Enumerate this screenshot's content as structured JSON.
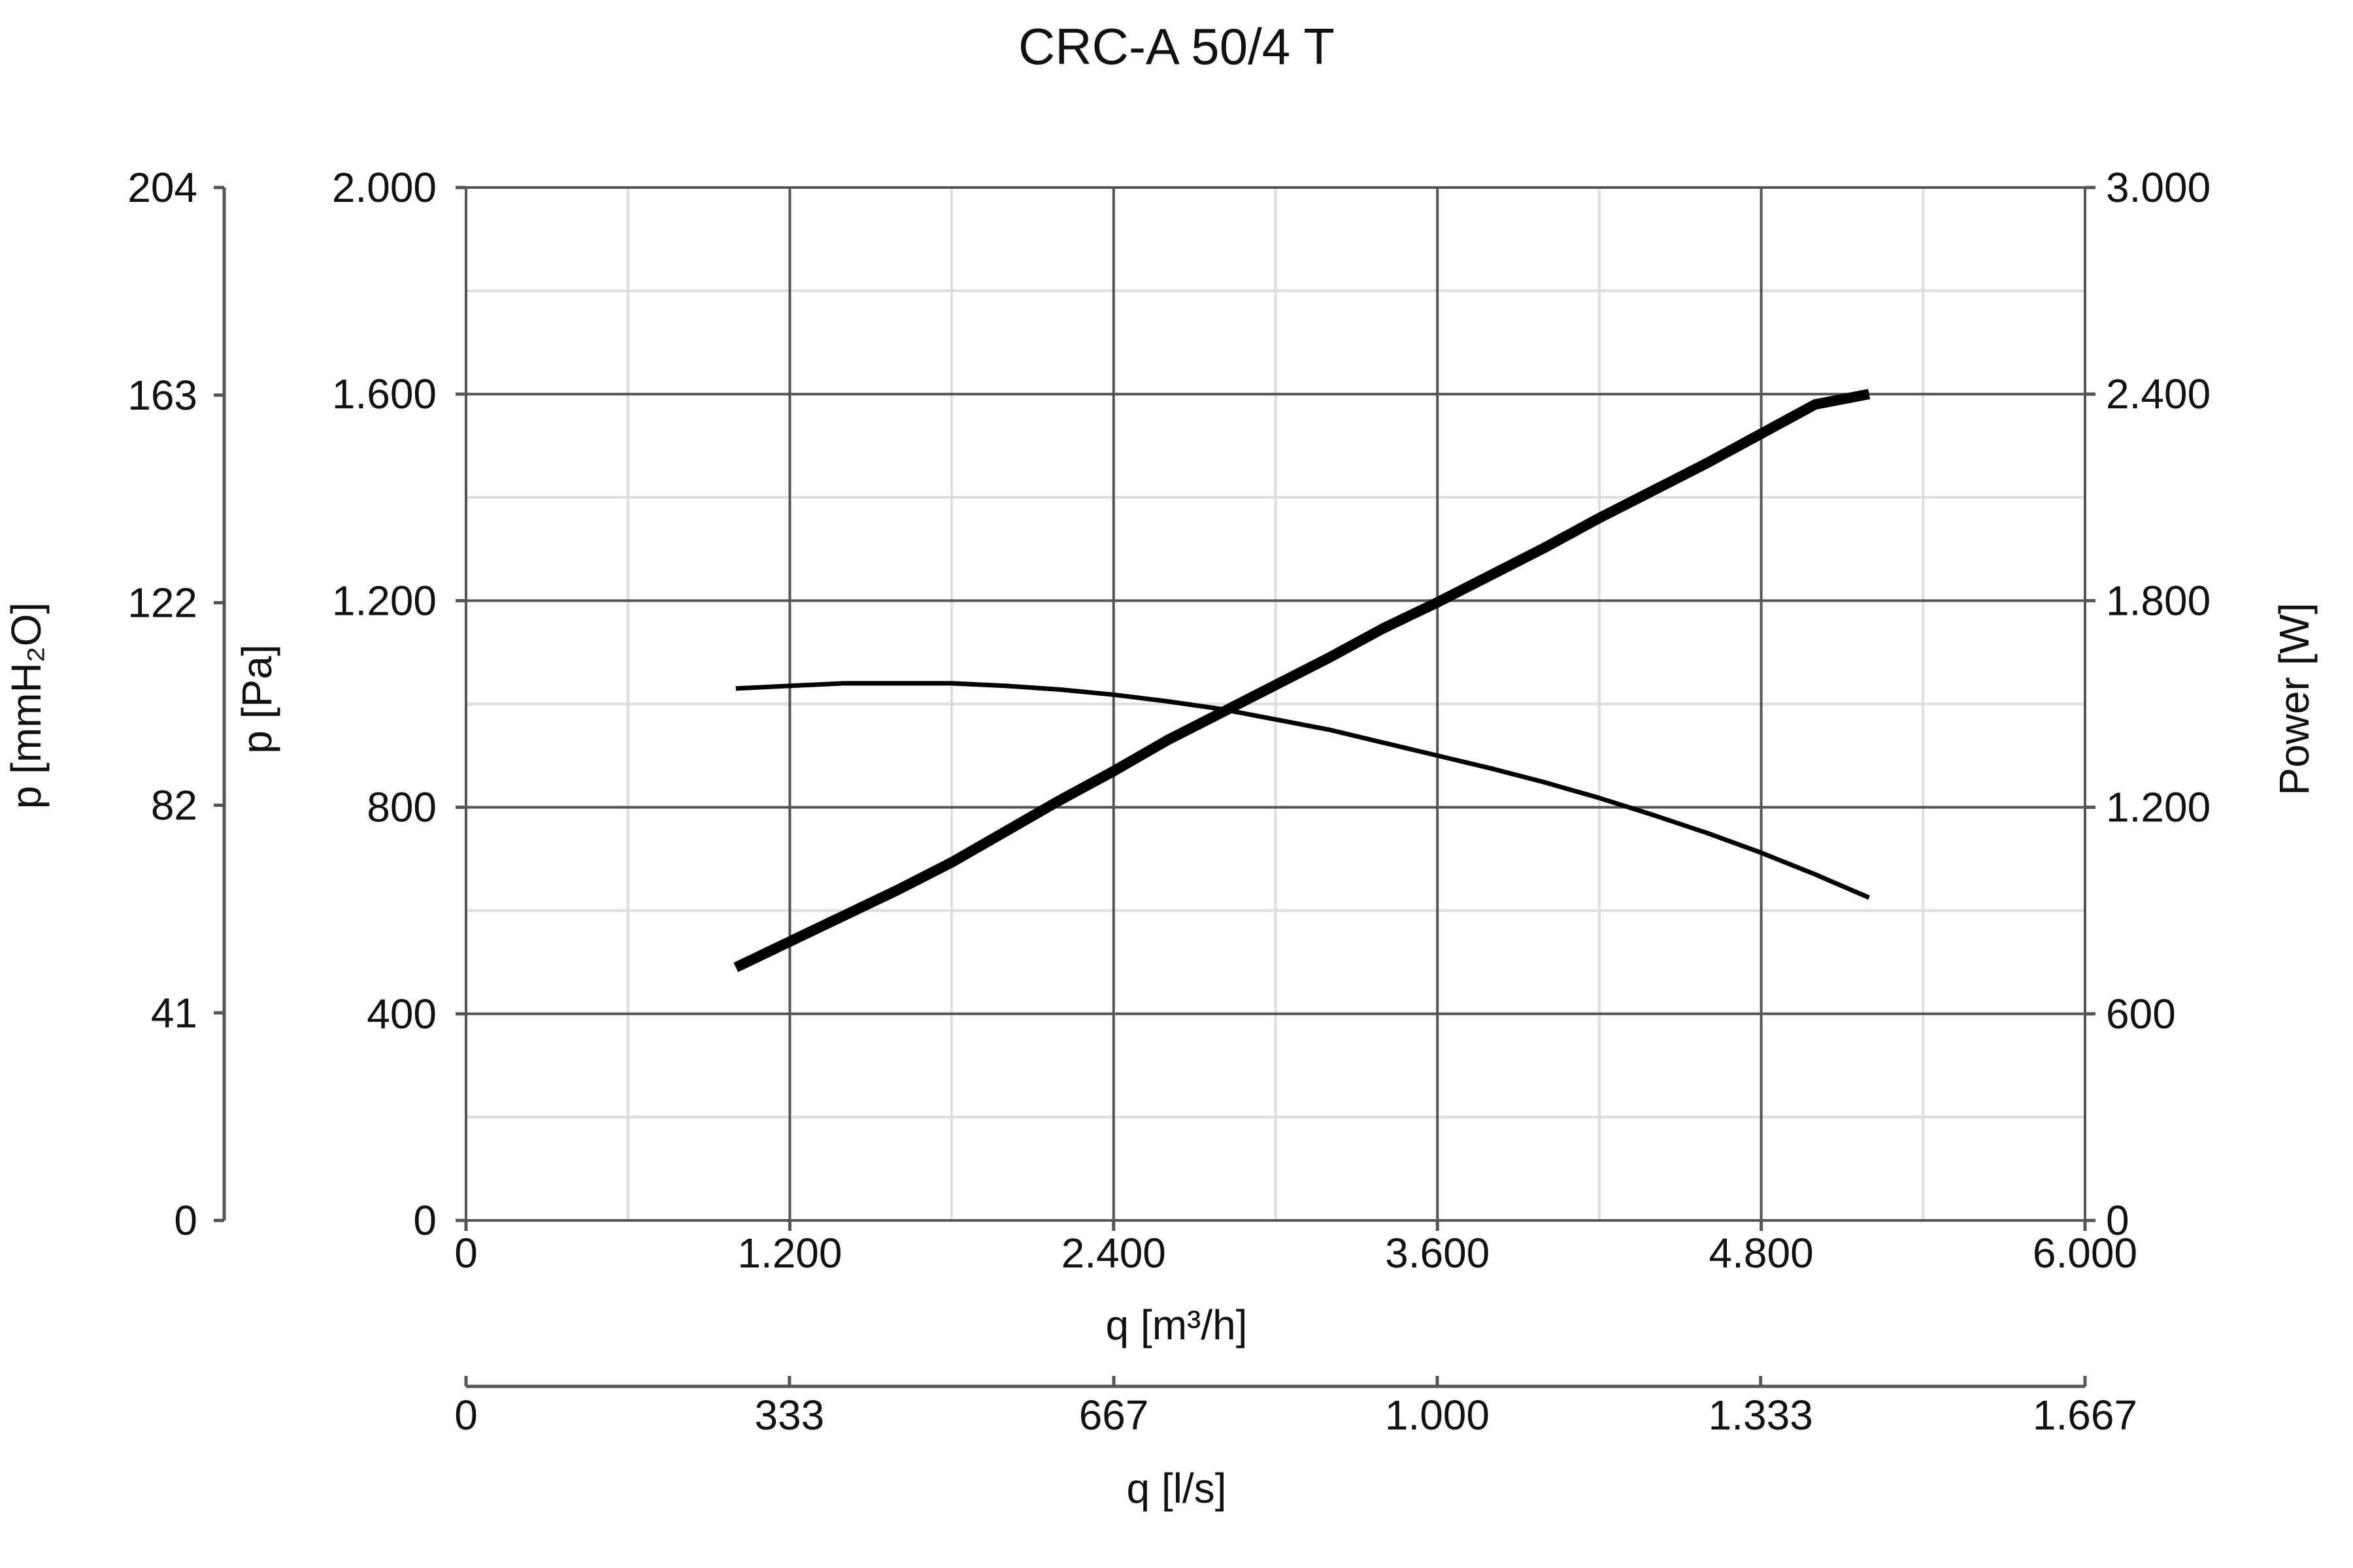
{
  "chart_data": {
    "type": "line",
    "title": "CRC-A 50/4 T",
    "x_axis": {
      "label": "q [m³/h]",
      "range": [
        0,
        6000
      ],
      "ticks": [
        0,
        1200,
        2400,
        3600,
        4800,
        6000
      ],
      "tick_labels": [
        "0",
        "1.200",
        "2.400",
        "3.600",
        "4.800",
        "6.000"
      ]
    },
    "x2_axis": {
      "label": "q [l/s]",
      "range": [
        0,
        1667
      ],
      "ticks": [
        0,
        333,
        667,
        1000,
        1333,
        1667
      ],
      "tick_labels": [
        "0",
        "333",
        "667",
        "1.000",
        "1.333",
        "1.667"
      ]
    },
    "y_axis": {
      "label": "p [Pa]",
      "range": [
        0,
        2000
      ],
      "ticks": [
        0,
        400,
        800,
        1200,
        1600,
        2000
      ],
      "tick_labels": [
        "0",
        "400",
        "800",
        "1.200",
        "1.600",
        "2.000"
      ]
    },
    "y_left_outer_axis": {
      "label": "p [mmH₂O]",
      "range": [
        0,
        204
      ],
      "ticks": [
        0,
        41,
        82,
        122,
        163,
        204
      ],
      "tick_labels": [
        "0",
        "41",
        "82",
        "122",
        "163",
        "204"
      ]
    },
    "y2_axis": {
      "label": "Power [W]",
      "range": [
        0,
        3000
      ],
      "ticks": [
        0,
        600,
        1200,
        1800,
        2400,
        3000
      ],
      "tick_labels": [
        "0",
        "600",
        "1.200",
        "1.800",
        "2.400",
        "3.000"
      ]
    },
    "grid": true,
    "series": [
      {
        "axis": "y",
        "x": [
          1000,
          1200,
          1400,
          1600,
          1800,
          2000,
          2200,
          2400,
          2600,
          2800,
          3000,
          3200,
          3400,
          3600,
          3800,
          4000,
          4200,
          4400,
          4600,
          4800,
          5000,
          5200
        ],
        "values": [
          1030,
          1035,
          1040,
          1040,
          1040,
          1035,
          1028,
          1018,
          1005,
          990,
          970,
          950,
          925,
          900,
          875,
          848,
          818,
          785,
          750,
          712,
          670,
          625
        ]
      },
      {
        "axis": "y2",
        "x": [
          1000,
          1200,
          1400,
          1600,
          1800,
          2000,
          2200,
          2400,
          2600,
          2800,
          3000,
          3200,
          3400,
          3600,
          3800,
          4000,
          4200,
          4400,
          4600,
          4800,
          5000,
          5200
        ],
        "values": [
          735,
          810,
          885,
          960,
          1040,
          1130,
          1220,
          1305,
          1395,
          1475,
          1555,
          1635,
          1720,
          1795,
          1875,
          1955,
          2040,
          2120,
          2200,
          2285,
          2370,
          2400
        ]
      }
    ]
  }
}
